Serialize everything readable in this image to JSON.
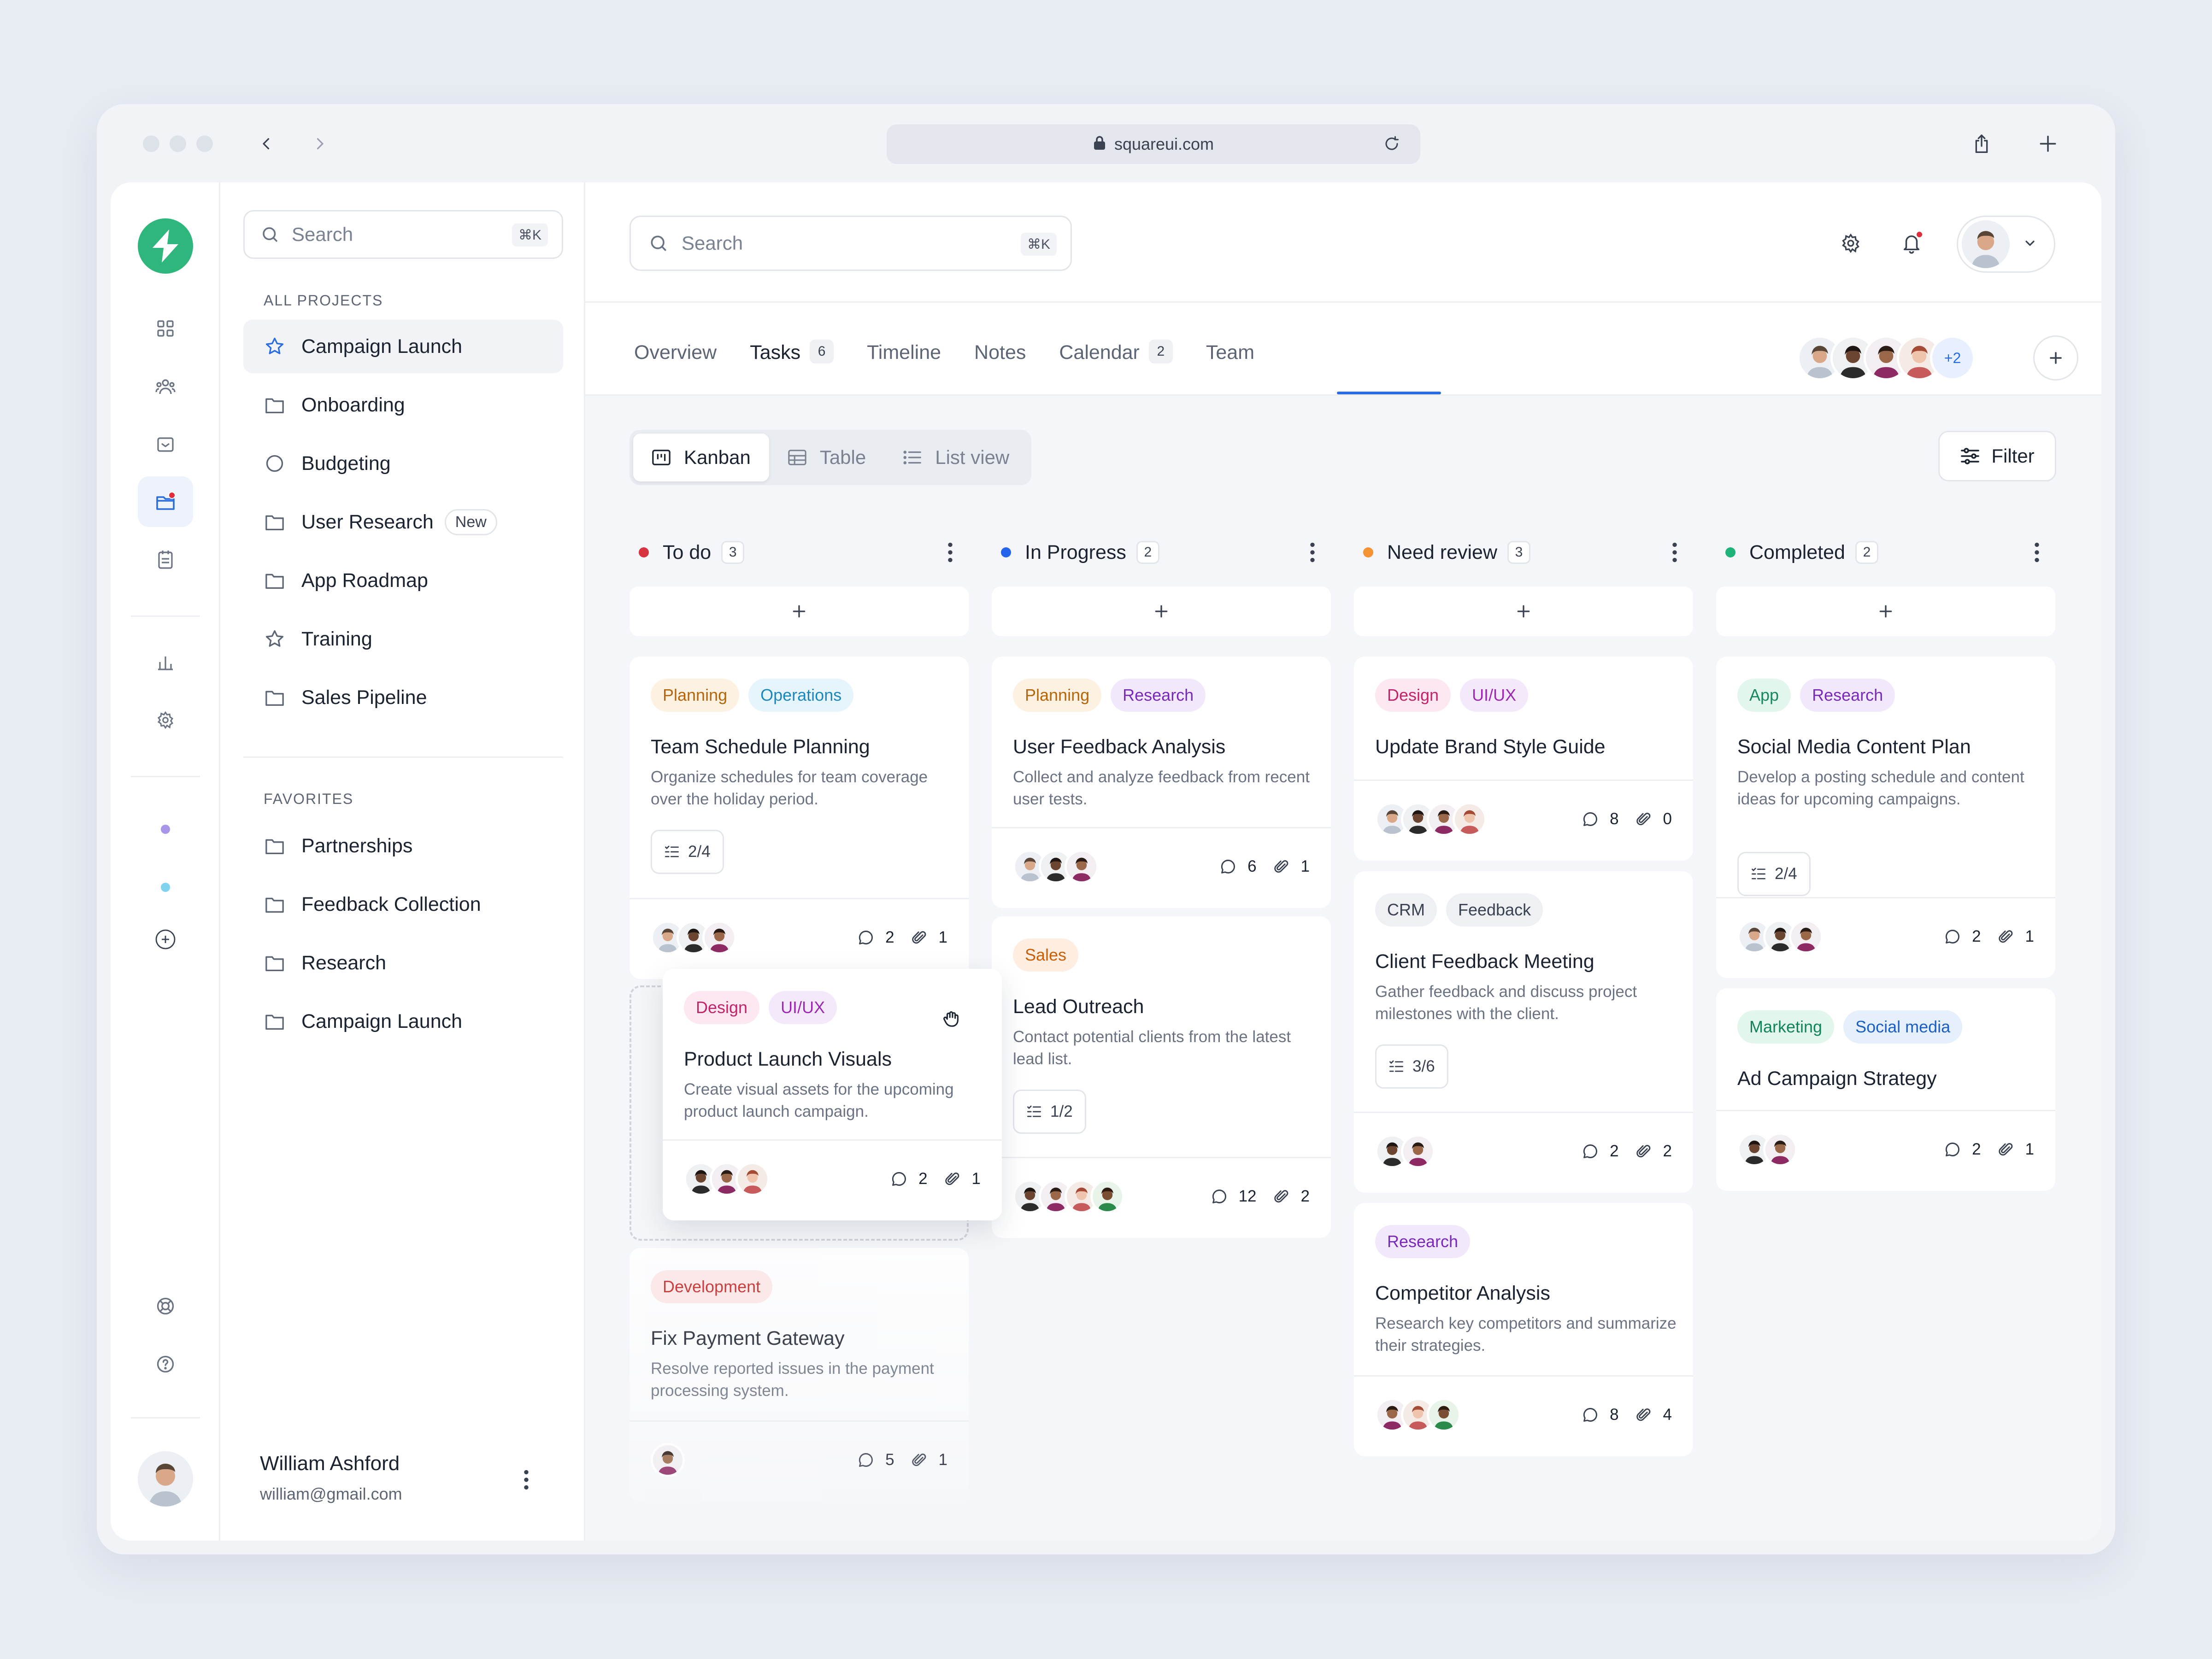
{
  "browser": {
    "url": "squareui.com"
  },
  "sidebar_rail": {
    "active": "projects"
  },
  "projects": {
    "search_placeholder": "Search",
    "search_shortcut": "⌘K",
    "all_label": "ALL PROJECTS",
    "items": [
      {
        "label": "Campaign Launch",
        "icon": "star-icon",
        "active": true
      },
      {
        "label": "Onboarding",
        "icon": "folder-icon"
      },
      {
        "label": "Budgeting",
        "icon": "circle-icon"
      },
      {
        "label": "User Research",
        "icon": "folder-icon",
        "badge": "New"
      },
      {
        "label": "App Roadmap",
        "icon": "folder-icon"
      },
      {
        "label": "Training",
        "icon": "star-icon"
      },
      {
        "label": "Sales Pipeline",
        "icon": "folder-icon"
      }
    ],
    "favorites_label": "FAVORITES",
    "favorites": [
      {
        "label": "Partnerships"
      },
      {
        "label": "Feedback Collection"
      },
      {
        "label": "Research"
      },
      {
        "label": "Campaign Launch"
      }
    ],
    "user": {
      "name": "William Ashford",
      "email": "william@gmail.com"
    }
  },
  "header": {
    "search_placeholder": "Search",
    "search_shortcut": "⌘K"
  },
  "tabs": [
    {
      "label": "Overview"
    },
    {
      "label": "Tasks",
      "count": "6",
      "active": true
    },
    {
      "label": "Timeline"
    },
    {
      "label": "Notes"
    },
    {
      "label": "Calendar",
      "count": "2"
    },
    {
      "label": "Team"
    }
  ],
  "team": {
    "extra": "+2"
  },
  "views": [
    {
      "label": "Kanban",
      "active": true
    },
    {
      "label": "Table"
    },
    {
      "label": "List view"
    }
  ],
  "filter_label": "Filter",
  "columns": [
    {
      "title": "To do",
      "count": "3",
      "color": "#d8343f",
      "cards": [
        {
          "tags": [
            "Planning",
            "Operations"
          ],
          "title": "Team Schedule Planning",
          "desc": "Organize schedules for team coverage over the holiday period.",
          "checklist": "2/4",
          "comments": "2",
          "attachments": "1"
        },
        {
          "tags": [
            "Design",
            "UI/UX"
          ],
          "title": "Product Launch Visuals",
          "desc": "Create visual assets for the upcoming product launch campaign.",
          "comments": "2",
          "attachments": "1",
          "dragging": true
        },
        {
          "tags": [
            "Development"
          ],
          "title": "Fix Payment Gateway",
          "desc": "Resolve reported issues in the payment processing system.",
          "comments": "5",
          "attachments": "1"
        }
      ]
    },
    {
      "title": "In Progress",
      "count": "2",
      "color": "#2563eb",
      "cards": [
        {
          "tags": [
            "Planning",
            "Research"
          ],
          "title": "User Feedback Analysis",
          "desc": "Collect and analyze feedback from recent user tests.",
          "comments": "6",
          "attachments": "1"
        },
        {
          "tags": [
            "Sales"
          ],
          "title": "Lead Outreach",
          "desc": "Contact potential clients from the latest lead list.",
          "checklist": "1/2",
          "comments": "12",
          "attachments": "2"
        }
      ]
    },
    {
      "title": "Need review",
      "count": "3",
      "color": "#f59332",
      "cards": [
        {
          "tags": [
            "Design",
            "UI/UX"
          ],
          "title": "Update Brand Style Guide",
          "comments": "8",
          "attachments": "0"
        },
        {
          "tags": [
            "CRM",
            "Feedback"
          ],
          "title": "Client Feedback Meeting",
          "desc": "Gather feedback and discuss project milestones with the client.",
          "checklist": "3/6",
          "comments": "2",
          "attachments": "2"
        },
        {
          "tags": [
            "Research"
          ],
          "title": "Competitor Analysis",
          "desc": "Research key competitors and summarize their strategies.",
          "comments": "8",
          "attachments": "4"
        }
      ]
    },
    {
      "title": "Completed",
      "count": "2",
      "color": "#1fb37a",
      "cards": [
        {
          "tags": [
            "App",
            "Research"
          ],
          "title": "Social Media Content Plan",
          "desc": "Develop a posting schedule and content ideas for upcoming campaigns.",
          "checklist": "2/4",
          "comments": "2",
          "attachments": "1"
        },
        {
          "tags": [
            "Marketing",
            "Social media"
          ],
          "title": "Ad Campaign Strategy",
          "comments": "2",
          "attachments": "1"
        }
      ]
    }
  ]
}
